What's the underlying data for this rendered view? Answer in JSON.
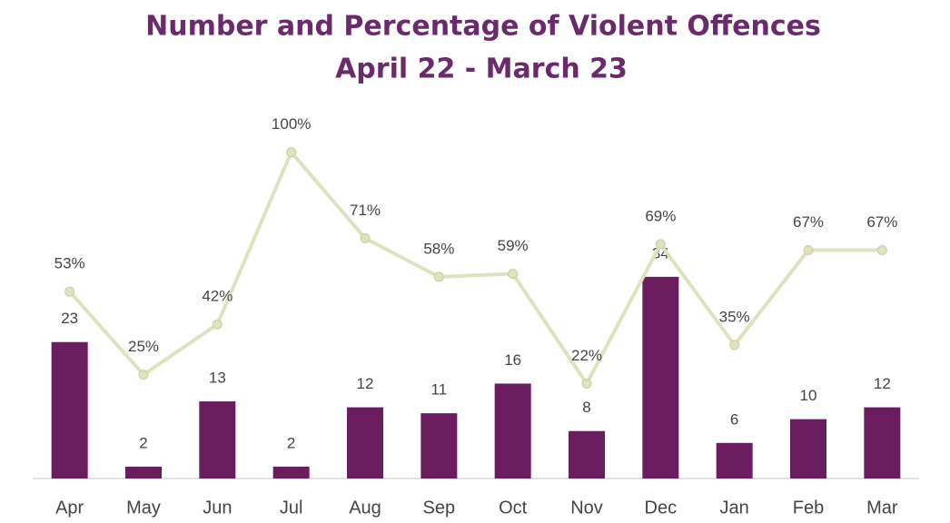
{
  "chart_data": {
    "type": "bar_line",
    "title": "Number and Percentage of Violent Offences",
    "subtitle": "April 22 - March 23",
    "categories": [
      "Apr",
      "May",
      "Jun",
      "Jul",
      "Aug",
      "Sep",
      "Oct",
      "Nov",
      "Dec",
      "Jan",
      "Feb",
      "Mar"
    ],
    "series": [
      {
        "type": "bar",
        "color": "#6b1d5f",
        "axis": "y",
        "values": [
          23,
          2,
          13,
          2,
          12,
          11,
          16,
          8,
          34,
          6,
          10,
          12
        ]
      },
      {
        "type": "line",
        "color": "#dfe2bd",
        "axis": "y2",
        "values": [
          53,
          25,
          42,
          100,
          71,
          58,
          59,
          22,
          69,
          35,
          67,
          67
        ],
        "value_labels": [
          "53%",
          "25%",
          "42%",
          "100%",
          "71%",
          "58%",
          "59%",
          "22%",
          "69%",
          "35%",
          "67%",
          "67%"
        ]
      }
    ],
    "ylim": [
      0,
      60
    ],
    "y2lim": [
      -10,
      110
    ]
  }
}
